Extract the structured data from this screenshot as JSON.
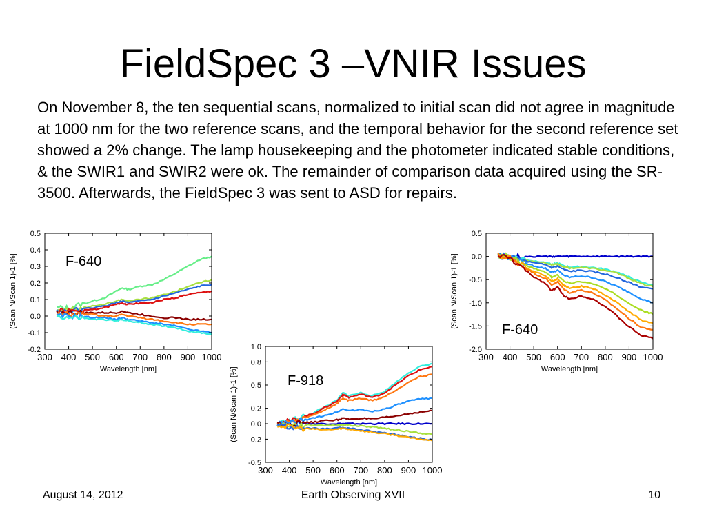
{
  "slide": {
    "title": "FieldSpec 3 –VNIR Issues",
    "body": "On November 8, the ten sequential scans, normalized to initial scan did not agree in magnitude at 1000 nm for the two reference scans, and the temporal behavior for the second reference set showed a 2% change. The lamp housekeeping and the photometer indicated stable conditions, & the SWIR1 and SWIR2 were ok. The remainder of comparison data acquired using the SR-3500. Afterwards, the FieldSpec 3 was sent to ASD for repairs.",
    "footer_date": "August 14, 2012",
    "footer_center": "Earth Observing XVII",
    "footer_page": "10"
  },
  "chart_data": [
    {
      "type": "line",
      "panel": "left",
      "annotation": "F-640",
      "xlabel": "Wavelength [nm]",
      "ylabel": "(Scan N/Scan 1)-1 [%]",
      "xlim": [
        300,
        1000
      ],
      "ylim": [
        -0.2,
        0.5
      ],
      "xticks": [
        300,
        400,
        500,
        600,
        700,
        800,
        900,
        1000
      ],
      "yticks": [
        -0.2,
        -0.1,
        0.0,
        0.1,
        0.2,
        0.3,
        0.4,
        0.5
      ],
      "ytick_labels": [
        "-0.2",
        "-0.1",
        "0.0",
        "0.1",
        "0.2",
        "0.3",
        "0.4",
        "0.5"
      ],
      "grid": false,
      "x": [
        350,
        400,
        450,
        500,
        550,
        600,
        625,
        650,
        700,
        750,
        800,
        850,
        900,
        950,
        1000
      ],
      "series": [
        {
          "color": "#66ee88",
          "values": [
            0.05,
            0.05,
            0.07,
            0.09,
            0.11,
            0.15,
            0.17,
            0.16,
            0.18,
            0.19,
            0.22,
            0.26,
            0.3,
            0.34,
            0.36
          ]
        },
        {
          "color": "#a8e040",
          "values": [
            0.04,
            0.04,
            0.05,
            0.06,
            0.07,
            0.09,
            0.1,
            0.09,
            0.1,
            0.11,
            0.13,
            0.15,
            0.18,
            0.2,
            0.22
          ]
        },
        {
          "color": "#2266dd",
          "values": [
            0.03,
            0.03,
            0.04,
            0.05,
            0.06,
            0.08,
            0.09,
            0.08,
            0.09,
            0.1,
            0.12,
            0.14,
            0.16,
            0.18,
            0.19
          ]
        },
        {
          "color": "#dd1111",
          "values": [
            0.03,
            0.03,
            0.03,
            0.04,
            0.05,
            0.07,
            0.08,
            0.07,
            0.08,
            0.08,
            0.1,
            0.11,
            0.13,
            0.14,
            0.15
          ]
        },
        {
          "color": "#8b0000",
          "values": [
            0.02,
            0.02,
            0.02,
            0.02,
            0.02,
            0.02,
            0.03,
            0.02,
            0.01,
            0.0,
            -0.01,
            -0.01,
            -0.02,
            -0.02,
            -0.02
          ]
        },
        {
          "color": "#ff7711",
          "values": [
            0.01,
            0.01,
            0.01,
            0.01,
            0.0,
            0.0,
            0.01,
            0.0,
            -0.01,
            -0.02,
            -0.03,
            -0.04,
            -0.05,
            -0.05,
            -0.05
          ]
        },
        {
          "color": "#1e90ff",
          "values": [
            0.0,
            0.0,
            0.0,
            -0.01,
            -0.01,
            -0.02,
            -0.01,
            -0.02,
            -0.03,
            -0.04,
            -0.05,
            -0.06,
            -0.08,
            -0.09,
            -0.1
          ]
        },
        {
          "color": "#33eedd",
          "values": [
            0.0,
            -0.01,
            -0.01,
            -0.02,
            -0.02,
            -0.03,
            -0.02,
            -0.03,
            -0.04,
            -0.05,
            -0.06,
            -0.07,
            -0.09,
            -0.1,
            -0.11
          ]
        }
      ]
    },
    {
      "type": "line",
      "panel": "center",
      "annotation": "F-918",
      "xlabel": "Wavelength [nm]",
      "ylabel": "(Scan N/Scan 1)-1 [%]",
      "xlim": [
        300,
        1000
      ],
      "ylim": [
        -0.5,
        1.0
      ],
      "xticks": [
        300,
        400,
        500,
        600,
        700,
        800,
        900,
        1000
      ],
      "yticks": [
        -0.5,
        -0.2,
        0.0,
        0.2,
        0.5,
        0.8,
        1.0
      ],
      "ytick_labels": [
        "-0.5",
        "-0.2",
        "0.0",
        "0.2",
        "0.5",
        "0.8",
        "1.0"
      ],
      "grid": false,
      "x": [
        350,
        400,
        450,
        500,
        550,
        600,
        625,
        650,
        700,
        750,
        800,
        850,
        900,
        950,
        1000
      ],
      "series": [
        {
          "color": "#0000cc",
          "values": [
            0,
            0,
            0,
            0,
            0,
            0,
            0,
            0,
            0,
            0,
            0,
            0,
            0,
            0,
            0
          ]
        },
        {
          "color": "#33eedd",
          "values": [
            0.01,
            0.03,
            0.08,
            0.14,
            0.22,
            0.3,
            0.4,
            0.36,
            0.4,
            0.36,
            0.42,
            0.54,
            0.66,
            0.74,
            0.78
          ]
        },
        {
          "color": "#dd1111",
          "values": [
            0.01,
            0.03,
            0.08,
            0.13,
            0.21,
            0.29,
            0.38,
            0.34,
            0.38,
            0.34,
            0.4,
            0.51,
            0.62,
            0.7,
            0.74
          ]
        },
        {
          "color": "#ff7711",
          "values": [
            0.01,
            0.02,
            0.06,
            0.11,
            0.18,
            0.26,
            0.33,
            0.3,
            0.33,
            0.3,
            0.35,
            0.44,
            0.54,
            0.61,
            0.64
          ]
        },
        {
          "color": "#1e90ff",
          "values": [
            0.0,
            0.01,
            0.04,
            0.07,
            0.11,
            0.15,
            0.19,
            0.17,
            0.18,
            0.16,
            0.19,
            0.24,
            0.29,
            0.32,
            0.33
          ]
        },
        {
          "color": "#8b0000",
          "values": [
            0.0,
            0.0,
            0.01,
            0.02,
            0.04,
            0.05,
            0.07,
            0.06,
            0.07,
            0.06,
            0.08,
            0.1,
            0.13,
            0.15,
            0.17
          ]
        },
        {
          "color": "#a8e040",
          "values": [
            -0.01,
            -0.02,
            -0.02,
            -0.02,
            -0.02,
            -0.02,
            -0.01,
            -0.02,
            -0.03,
            -0.04,
            -0.06,
            -0.08,
            -0.1,
            -0.12,
            -0.14
          ]
        },
        {
          "color": "#2266dd",
          "values": [
            -0.02,
            -0.04,
            -0.06,
            -0.06,
            -0.07,
            -0.06,
            -0.05,
            -0.06,
            -0.08,
            -0.1,
            -0.12,
            -0.14,
            -0.17,
            -0.19,
            -0.21
          ]
        },
        {
          "color": "#ffaa00",
          "values": [
            -0.02,
            -0.04,
            -0.06,
            -0.07,
            -0.08,
            -0.07,
            -0.06,
            -0.07,
            -0.09,
            -0.11,
            -0.13,
            -0.15,
            -0.18,
            -0.2,
            -0.22
          ]
        }
      ]
    },
    {
      "type": "line",
      "panel": "right",
      "annotation": "F-640",
      "xlabel": "Wavelength [nm]",
      "ylabel": "(Scan N/Scan 1)-1 [%]",
      "xlim": [
        300,
        1000
      ],
      "ylim": [
        -2.0,
        0.5
      ],
      "xticks": [
        300,
        400,
        500,
        600,
        700,
        800,
        900,
        1000
      ],
      "yticks": [
        -2.0,
        -1.5,
        -1.0,
        -0.5,
        0.0,
        0.5
      ],
      "ytick_labels": [
        "-2.0",
        "-1.5",
        "-1.0",
        "-0.5",
        "0.0",
        "0.5"
      ],
      "grid": false,
      "x": [
        350,
        400,
        450,
        500,
        550,
        575,
        600,
        625,
        650,
        700,
        750,
        800,
        850,
        900,
        950,
        1000
      ],
      "series": [
        {
          "color": "#0000cc",
          "values": [
            0,
            0,
            0,
            0,
            0,
            0,
            0,
            0,
            0,
            0,
            0,
            0,
            0,
            0,
            0,
            0
          ]
        },
        {
          "color": "#33eedd",
          "values": [
            0.02,
            0.0,
            -0.05,
            -0.1,
            -0.12,
            -0.17,
            -0.14,
            -0.2,
            -0.23,
            -0.22,
            -0.24,
            -0.28,
            -0.34,
            -0.44,
            -0.56,
            -0.62
          ]
        },
        {
          "color": "#a8e040",
          "values": [
            0.02,
            0.0,
            -0.06,
            -0.11,
            -0.14,
            -0.19,
            -0.16,
            -0.22,
            -0.25,
            -0.24,
            -0.26,
            -0.3,
            -0.36,
            -0.47,
            -0.59,
            -0.65
          ]
        },
        {
          "color": "#2266dd",
          "values": [
            0.02,
            -0.01,
            -0.08,
            -0.14,
            -0.18,
            -0.24,
            -0.21,
            -0.28,
            -0.32,
            -0.3,
            -0.33,
            -0.38,
            -0.46,
            -0.56,
            -0.66,
            -0.7
          ]
        },
        {
          "color": "#1e90ff",
          "values": [
            0.02,
            -0.02,
            -0.12,
            -0.2,
            -0.26,
            -0.34,
            -0.3,
            -0.4,
            -0.45,
            -0.42,
            -0.46,
            -0.54,
            -0.65,
            -0.77,
            -0.91,
            -1.0
          ]
        },
        {
          "color": "#aadd22",
          "values": [
            0.02,
            -0.02,
            -0.15,
            -0.26,
            -0.34,
            -0.45,
            -0.4,
            -0.52,
            -0.58,
            -0.54,
            -0.59,
            -0.7,
            -0.84,
            -1.0,
            -1.16,
            -1.24
          ]
        },
        {
          "color": "#ffaa00",
          "values": [
            0.02,
            -0.03,
            -0.18,
            -0.32,
            -0.42,
            -0.54,
            -0.48,
            -0.62,
            -0.69,
            -0.64,
            -0.7,
            -0.83,
            -1.0,
            -1.19,
            -1.37,
            -1.44
          ]
        },
        {
          "color": "#ff7711",
          "values": [
            0.02,
            -0.03,
            -0.2,
            -0.36,
            -0.48,
            -0.61,
            -0.55,
            -0.7,
            -0.78,
            -0.72,
            -0.79,
            -0.94,
            -1.13,
            -1.34,
            -1.53,
            -1.58
          ]
        },
        {
          "color": "#aa0000",
          "values": [
            0.02,
            -0.04,
            -0.24,
            -0.44,
            -0.58,
            -0.74,
            -0.66,
            -0.84,
            -0.92,
            -0.85,
            -0.92,
            -1.08,
            -1.29,
            -1.52,
            -1.7,
            -1.77
          ]
        }
      ]
    }
  ]
}
